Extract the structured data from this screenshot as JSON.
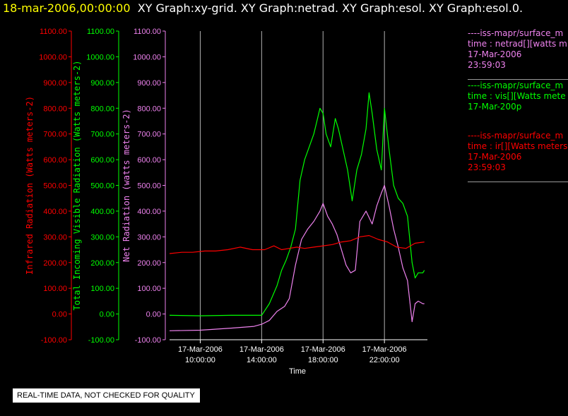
{
  "header": {
    "timestamp": "18-mar-2006,00:00:00",
    "graphs": "XY Graph:xy-grid.  XY Graph:netrad.  XY Graph:esol.  XY Graph:esol.0."
  },
  "legend": [
    {
      "line1": "----iss-mapr/surface_m",
      "line2": "time : netrad[][watts m",
      "line3": "17-Mar-2006",
      "line4": "23:59:03",
      "color": "#ee82ee"
    },
    {
      "line1": "----iss-mapr/surface_m",
      "line2": "time : vis[][Watts mete",
      "line3": "17-Mar-200p",
      "line4": "",
      "color": "#00ff00"
    },
    {
      "line1": "----iss-mapr/surface_m",
      "line2": "time : ir[][Watts meters",
      "line3": "17-Mar-2006",
      "line4": "23:59:03",
      "color": "#ff0000"
    }
  ],
  "notice": "REAL-TIME DATA, NOT CHECKED FOR QUALITY",
  "chart_data": {
    "type": "line",
    "xlabel": "Time",
    "x_ticks": [
      {
        "date": "17-Mar-2006",
        "time": "10:00:00",
        "hour": 10
      },
      {
        "date": "17-Mar-2006",
        "time": "14:00:00",
        "hour": 14
      },
      {
        "date": "17-Mar-2006",
        "time": "18:00:00",
        "hour": 18
      },
      {
        "date": "17-Mar-2006",
        "time": "22:00:00",
        "hour": 22
      }
    ],
    "xlim_hours": [
      8.0,
      24.8
    ],
    "y_axes": [
      {
        "label": "Infrared Radiation (Watts meters-2)",
        "color": "#ff0000",
        "ylim": [
          -100,
          1100
        ],
        "ticks": [
          "-100.00",
          "0.00",
          "100.00",
          "200.00",
          "300.00",
          "400.00",
          "500.00",
          "600.00",
          "700.00",
          "800.00",
          "900.00",
          "1000.00",
          "1100.00"
        ]
      },
      {
        "label": "Total Incoming Visible Radiation (Watts meters-2)",
        "color": "#00ff00",
        "ylim": [
          -100,
          1100
        ],
        "ticks": [
          "-100.00",
          "0.00",
          "100.00",
          "200.00",
          "300.00",
          "400.00",
          "500.00",
          "600.00",
          "700.00",
          "800.00",
          "900.00",
          "1000.00",
          "1100.00"
        ]
      },
      {
        "label": "Net Radiation (watts meters-2)",
        "color": "#ee82ee",
        "ylim": [
          -100,
          1100
        ],
        "ticks": [
          "-100.00",
          "0.00",
          "100.00",
          "200.00",
          "300.00",
          "400.00",
          "500.00",
          "600.00",
          "700.00",
          "800.00",
          "900.00",
          "1000.00",
          "1100.00"
        ]
      }
    ],
    "grid": "vertical lines at x ticks",
    "series": [
      {
        "color": "#00ff00",
        "x": [
          8.0,
          10.0,
          12.0,
          14.0,
          14.5,
          15.0,
          15.3,
          15.6,
          15.9,
          16.2,
          16.5,
          16.8,
          17.1,
          17.4,
          17.6,
          17.8,
          18.0,
          18.2,
          18.5,
          18.8,
          19.0,
          19.3,
          19.6,
          19.9,
          20.2,
          20.5,
          20.8,
          21.0,
          21.2,
          21.5,
          21.8,
          22.0,
          22.3,
          22.6,
          22.9,
          23.2,
          23.5,
          23.8,
          24.0,
          24.2,
          24.5,
          24.6
        ],
        "y": [
          -5,
          -7,
          -5,
          -5,
          40,
          110,
          170,
          210,
          260,
          330,
          520,
          600,
          650,
          700,
          750,
          800,
          780,
          700,
          650,
          760,
          720,
          640,
          560,
          440,
          560,
          620,
          720,
          860,
          780,
          640,
          560,
          800,
          640,
          500,
          450,
          430,
          380,
          200,
          140,
          160,
          160,
          170
        ]
      },
      {
        "color": "#ee82ee",
        "x": [
          8.0,
          10.0,
          12.0,
          13.5,
          14.0,
          14.5,
          15.0,
          15.5,
          15.8,
          16.2,
          16.6,
          17.0,
          17.4,
          17.8,
          18.0,
          18.3,
          18.6,
          18.9,
          19.2,
          19.5,
          19.8,
          20.1,
          20.4,
          20.8,
          21.2,
          21.5,
          21.8,
          22.0,
          22.3,
          22.6,
          22.9,
          23.2,
          23.5,
          23.8,
          24.0,
          24.2,
          24.5,
          24.6
        ],
        "y": [
          -65,
          -63,
          -55,
          -48,
          -40,
          -25,
          10,
          30,
          60,
          190,
          290,
          330,
          360,
          400,
          430,
          380,
          350,
          310,
          250,
          190,
          160,
          170,
          360,
          400,
          350,
          420,
          470,
          500,
          420,
          330,
          260,
          180,
          130,
          -30,
          40,
          50,
          40,
          40
        ]
      },
      {
        "color": "#ff0000",
        "x": [
          8.0,
          8.8,
          9.5,
          10.3,
          11.0,
          11.8,
          12.6,
          13.4,
          14.2,
          14.8,
          15.3,
          15.8,
          16.3,
          16.8,
          17.4,
          18.0,
          18.6,
          19.2,
          19.8,
          20.4,
          21.0,
          21.6,
          22.2,
          22.8,
          23.4,
          24.0,
          24.6
        ],
        "y": [
          235,
          240,
          240,
          245,
          245,
          250,
          260,
          250,
          250,
          265,
          250,
          255,
          260,
          255,
          260,
          265,
          270,
          280,
          285,
          300,
          305,
          290,
          280,
          260,
          255,
          275,
          280
        ]
      }
    ]
  }
}
